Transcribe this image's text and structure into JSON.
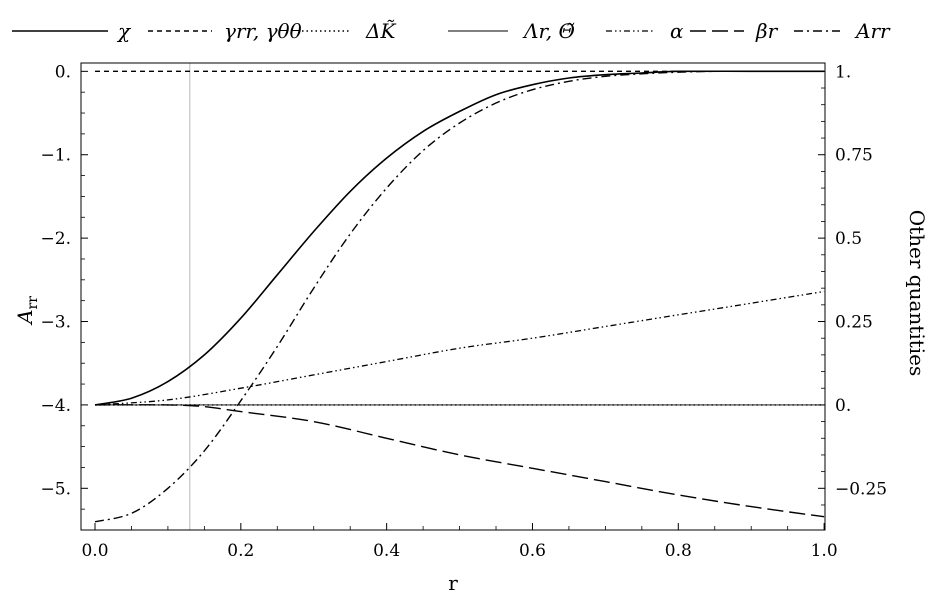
{
  "chart_data": {
    "type": "line",
    "xlabel": "r",
    "ylabel_left": "A_rr",
    "ylabel_right": "Other quantities",
    "xlim": [
      0,
      1
    ],
    "ylim_left": [
      -5.5,
      0.1
    ],
    "ylim_right": [
      -0.375,
      1.025
    ],
    "x_ticks": [
      0.0,
      0.2,
      0.4,
      0.6,
      0.8,
      1.0
    ],
    "x_tick_labels": [
      "0.0",
      "0.2",
      "0.4",
      "0.6",
      "0.8",
      "1.0"
    ],
    "y_left_ticks": [
      0,
      -1,
      -2,
      -3,
      -4,
      -5
    ],
    "y_left_tick_labels": [
      "0.",
      "−1.",
      "−2.",
      "−3.",
      "−4.",
      "−5."
    ],
    "y_right_ticks": [
      1,
      0.75,
      0.5,
      0.25,
      0,
      -0.25
    ],
    "y_right_tick_labels": [
      "1.",
      "0.75",
      "0.5",
      "0.25",
      "0.",
      "−0.25"
    ],
    "vertical_line_x": 0.13,
    "legend_placement": "top",
    "legend": [
      {
        "label": "χ",
        "style": "solid"
      },
      {
        "label": "γrr, γθθ",
        "style": "dashed"
      },
      {
        "label": "ΔK̃",
        "style": "dotted"
      },
      {
        "label": "Λr, Θ̃",
        "style": "solid-thin"
      },
      {
        "label": "α",
        "style": "dash-dot-dot"
      },
      {
        "label": "βr",
        "style": "long-dash"
      },
      {
        "label": "Arr",
        "style": "dash-dot"
      }
    ],
    "series": [
      {
        "name": "χ",
        "axis": "right",
        "style": "solid",
        "x": [
          0,
          0.05,
          0.1,
          0.15,
          0.2,
          0.25,
          0.3,
          0.35,
          0.4,
          0.45,
          0.5,
          0.55,
          0.6,
          0.65,
          0.7,
          0.75,
          0.8,
          0.9,
          1.0
        ],
        "y": [
          0,
          0.02,
          0.07,
          0.15,
          0.26,
          0.39,
          0.52,
          0.64,
          0.74,
          0.82,
          0.88,
          0.93,
          0.96,
          0.98,
          0.99,
          0.995,
          1.0,
          1.0,
          1.0
        ]
      },
      {
        "name": "γrr, γθθ",
        "axis": "right",
        "style": "dashed",
        "x": [
          0,
          1.0
        ],
        "y": [
          1.0,
          1.0
        ]
      },
      {
        "name": "ΔK̃",
        "axis": "right",
        "style": "dotted",
        "x": [
          0,
          1.0
        ],
        "y": [
          0,
          0
        ]
      },
      {
        "name": "Λr, Θ̃",
        "axis": "right",
        "style": "solid-thin",
        "x": [
          0,
          1.0
        ],
        "y": [
          0,
          0
        ]
      },
      {
        "name": "α",
        "axis": "right",
        "style": "dash-dot-dot",
        "x": [
          0,
          0.1,
          0.2,
          0.3,
          0.4,
          0.5,
          0.6,
          0.7,
          0.8,
          0.9,
          1.0
        ],
        "y": [
          0,
          0.015,
          0.05,
          0.09,
          0.13,
          0.17,
          0.2,
          0.235,
          0.27,
          0.305,
          0.34
        ]
      },
      {
        "name": "βr",
        "axis": "right",
        "style": "long-dash",
        "x": [
          0,
          0.1,
          0.15,
          0.2,
          0.3,
          0.4,
          0.5,
          0.6,
          0.7,
          0.8,
          0.9,
          1.0
        ],
        "y": [
          0,
          0,
          -0.005,
          -0.02,
          -0.05,
          -0.1,
          -0.15,
          -0.19,
          -0.23,
          -0.27,
          -0.305,
          -0.335
        ]
      },
      {
        "name": "Arr",
        "axis": "left",
        "style": "dash-dot",
        "x": [
          0,
          0.05,
          0.1,
          0.15,
          0.2,
          0.25,
          0.3,
          0.35,
          0.4,
          0.45,
          0.5,
          0.55,
          0.6,
          0.65,
          0.7,
          0.75,
          0.8,
          0.85,
          0.9,
          1.0
        ],
        "y": [
          -5.4,
          -5.3,
          -5.0,
          -4.55,
          -3.95,
          -3.3,
          -2.6,
          -1.95,
          -1.4,
          -0.95,
          -0.62,
          -0.38,
          -0.22,
          -0.12,
          -0.06,
          -0.03,
          -0.01,
          0.0,
          0.0,
          0.0
        ]
      }
    ]
  }
}
